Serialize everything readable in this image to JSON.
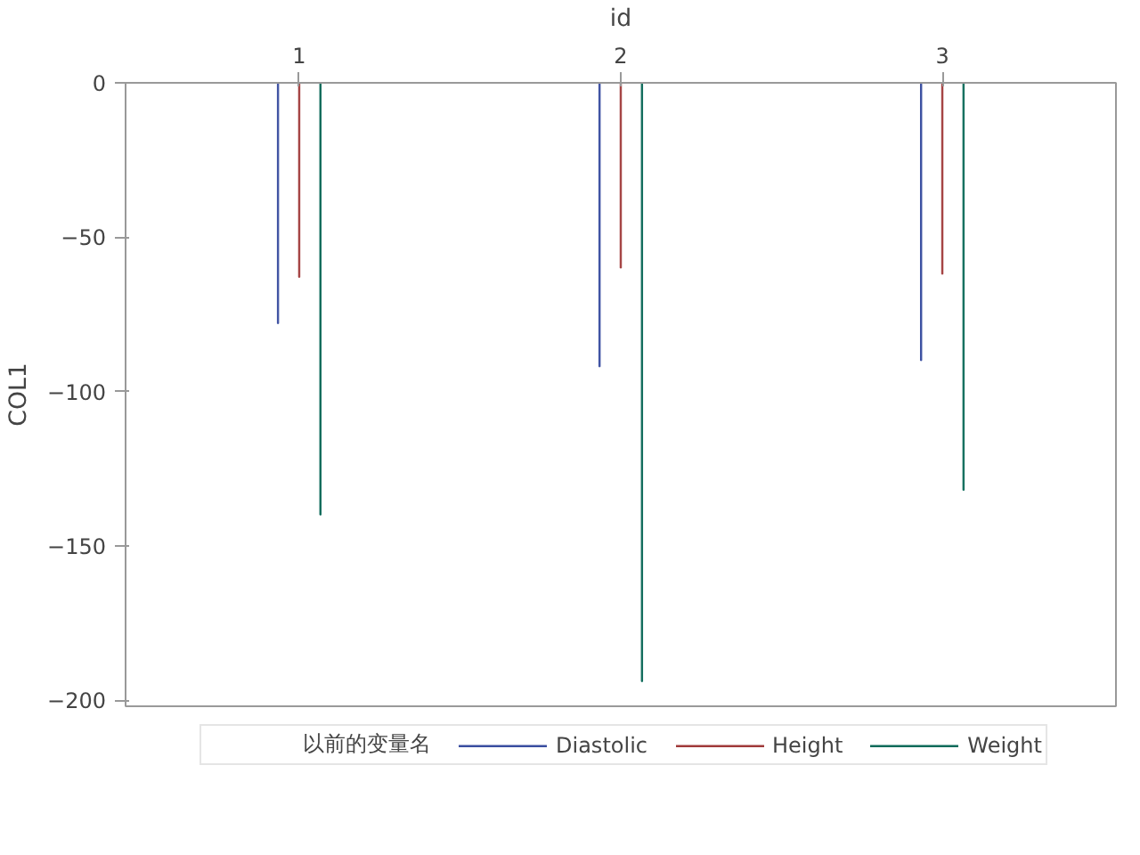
{
  "chart_data": {
    "type": "bar",
    "xlabel": "id",
    "ylabel": "COL1",
    "legend_title": "以前的变量名",
    "categories": [
      "1",
      "2",
      "3"
    ],
    "series": [
      {
        "name": "Diastolic",
        "color": "#3a4ea0",
        "values": [
          -78,
          -92,
          -90
        ]
      },
      {
        "name": "Height",
        "color": "#a03a3a",
        "values": [
          -63,
          -60,
          -62
        ]
      },
      {
        "name": "Weight",
        "color": "#0d6b5a",
        "values": [
          -140,
          -194,
          -132
        ]
      }
    ],
    "ylim": [
      -202,
      0
    ],
    "yticks": [
      0,
      -50,
      -100,
      -150,
      -200
    ],
    "grid": false,
    "legend": "bottom"
  }
}
